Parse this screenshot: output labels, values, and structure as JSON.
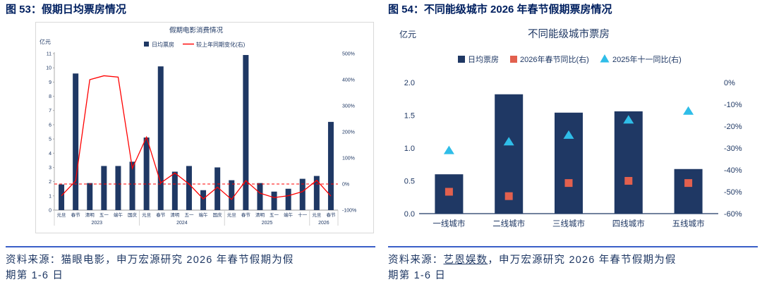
{
  "left_panel": {
    "title": "图 53：假期日均票房情况",
    "source_line1": "资料来源：猫眼电影，申万宏源研究 2026 年春节假期为假",
    "source_line2": "期第 1-6 日"
  },
  "right_panel": {
    "title": "图 54：不同能级城市 2026 年春节假期票房情况",
    "source_prefix": "资料来源：",
    "source_link": "艺恩娱数",
    "source_rest1": "，申万宏源研究 2026 年春节假期为假",
    "source_line2": "期第 1-6 日"
  },
  "colors": {
    "navy": "#1f3864",
    "title_blue": "#002060",
    "line_red": "#ff0000",
    "salmon": "#e2604e",
    "cyan": "#2fbde8",
    "divider_blue": "#3a5fc8",
    "axis_gray": "#999999",
    "separator_gray": "#c9c9c9",
    "frame_gray": "#d9d9d9"
  },
  "chart_data": [
    {
      "type": "bar",
      "title": "假期电影消费情况",
      "unit_label": "亿元",
      "legend": [
        "日均票房",
        "较上年同期变化(右)"
      ],
      "categories": [
        "元旦",
        "春节",
        "清明",
        "五一",
        "端午",
        "国庆",
        "元旦",
        "春节",
        "清明",
        "五一",
        "端午",
        "国庆",
        "元旦",
        "春节",
        "清明",
        "五一",
        "端午",
        "十一",
        "元旦",
        "春节"
      ],
      "year_groups": [
        {
          "label": "2023",
          "from": 0,
          "to": 5
        },
        {
          "label": "2024",
          "from": 6,
          "to": 11
        },
        {
          "label": "2025",
          "from": 12,
          "to": 17
        },
        {
          "label": "2026",
          "from": 18,
          "to": 19
        }
      ],
      "series": [
        {
          "name": "日均票房",
          "axis": "left",
          "type": "bar",
          "values": [
            1.8,
            9.6,
            1.9,
            3.1,
            3.1,
            3.4,
            5.1,
            10.1,
            2.7,
            3.1,
            1.4,
            3.0,
            2.1,
            10.9,
            1.9,
            1.3,
            1.5,
            2.2,
            2.4,
            6.2
          ]
        },
        {
          "name": "较上年同期变化(右)",
          "axis": "right",
          "type": "line",
          "values": [
            -45,
            12,
            400,
            415,
            410,
            60,
            180,
            4,
            42,
            0,
            -57,
            -12,
            -59,
            13,
            -35,
            -52,
            -45,
            -29,
            14,
            -46
          ]
        }
      ],
      "left_axis": {
        "label": "亿元",
        "min": 0,
        "max": 11,
        "step": 1
      },
      "right_axis": {
        "min": -100,
        "max": 500,
        "step": 100,
        "suffix": "%"
      },
      "zero_reference_line_pct": 0,
      "grid": false,
      "legend_position": "top"
    },
    {
      "type": "bar",
      "title": "不同能级城市票房",
      "unit_label": "亿元",
      "legend": [
        "日均票房",
        "2026年春节同比(右)",
        "2025年十一同比(右)"
      ],
      "categories": [
        "一线城市",
        "二线城市",
        "三线城市",
        "四线城市",
        "五线城市"
      ],
      "series": [
        {
          "name": "日均票房",
          "axis": "left",
          "type": "bar",
          "values": [
            0.6,
            1.82,
            1.54,
            1.56,
            0.68
          ]
        },
        {
          "name": "2026年春节同比(右)",
          "axis": "right",
          "type": "square-marker",
          "values": [
            -50,
            -52,
            -46,
            -45,
            -46
          ]
        },
        {
          "name": "2025年十一同比(右)",
          "axis": "right",
          "type": "triangle-marker",
          "values": [
            -31,
            -27,
            -24,
            -17,
            -13
          ]
        }
      ],
      "left_axis": {
        "label": "亿元",
        "min": 0,
        "max": 2.0,
        "step": 0.5
      },
      "right_axis": {
        "min": -60,
        "max": 0,
        "step": 10,
        "suffix": "%"
      },
      "grid": false,
      "legend_position": "top"
    }
  ]
}
